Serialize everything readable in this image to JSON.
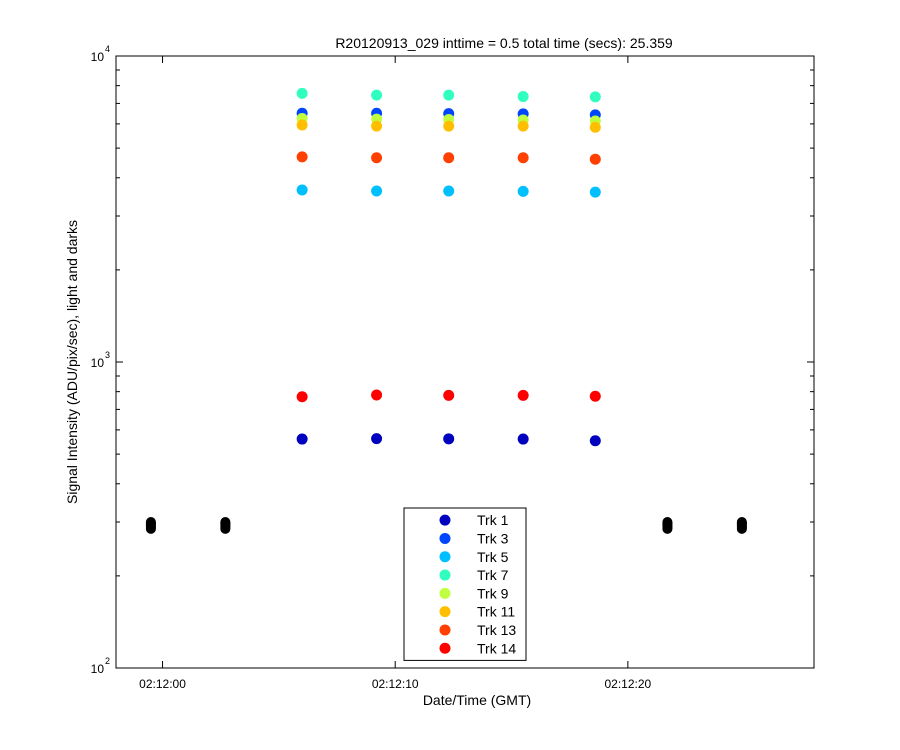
{
  "chart_data": {
    "type": "scatter",
    "title": "R20120913_029 inttime = 0.5 total time (secs): 25.359",
    "xlabel": "Date/Time (GMT)",
    "ylabel": "Signal Intensity (ADU/pix/sec), light and darks",
    "y_scale": "log",
    "ylim": [
      100,
      10000
    ],
    "xlim": [
      "02:11:58",
      "02:12:28"
    ],
    "x_ticks": [
      "02:12:00",
      "02:12:10",
      "02:12:20"
    ],
    "y_ticks": [
      {
        "base": "10",
        "exp": "2",
        "value": 100
      },
      {
        "base": "10",
        "exp": "3",
        "value": 1000
      },
      {
        "base": "10",
        "exp": "4",
        "value": 10000
      }
    ],
    "grid": false,
    "legend_position": "bottom-center",
    "light_times": [
      "02:12:06.0",
      "02:12:09.2",
      "02:12:12.3",
      "02:12:15.5",
      "02:12:18.6"
    ],
    "series": [
      {
        "name": "Trk 1",
        "color": "#0000bf",
        "values": [
          560,
          562,
          561,
          560,
          553
        ]
      },
      {
        "name": "Trk 3",
        "color": "#0046ff",
        "values": [
          6500,
          6500,
          6480,
          6470,
          6420
        ]
      },
      {
        "name": "Trk 5",
        "color": "#00bfff",
        "values": [
          3650,
          3620,
          3620,
          3610,
          3590
        ]
      },
      {
        "name": "Trk 7",
        "color": "#30ffbf",
        "values": [
          7550,
          7450,
          7450,
          7370,
          7350
        ]
      },
      {
        "name": "Trk 9",
        "color": "#bfff3f",
        "values": [
          6250,
          6220,
          6200,
          6180,
          6130
        ]
      },
      {
        "name": "Trk 11",
        "color": "#ffbf00",
        "values": [
          5950,
          5900,
          5900,
          5900,
          5850
        ]
      },
      {
        "name": "Trk 13",
        "color": "#ff4000",
        "values": [
          4680,
          4650,
          4650,
          4650,
          4600
        ]
      },
      {
        "name": "Trk 14",
        "color": "#ff0000",
        "values": [
          770,
          780,
          778,
          778,
          773
        ]
      }
    ],
    "darks": {
      "color": "#000000",
      "times": [
        "02:11:59.5",
        "02:12:02.7",
        "02:12:21.7",
        "02:12:24.9"
      ],
      "values": [
        285,
        287,
        290,
        292,
        294,
        296,
        298,
        300
      ]
    }
  }
}
